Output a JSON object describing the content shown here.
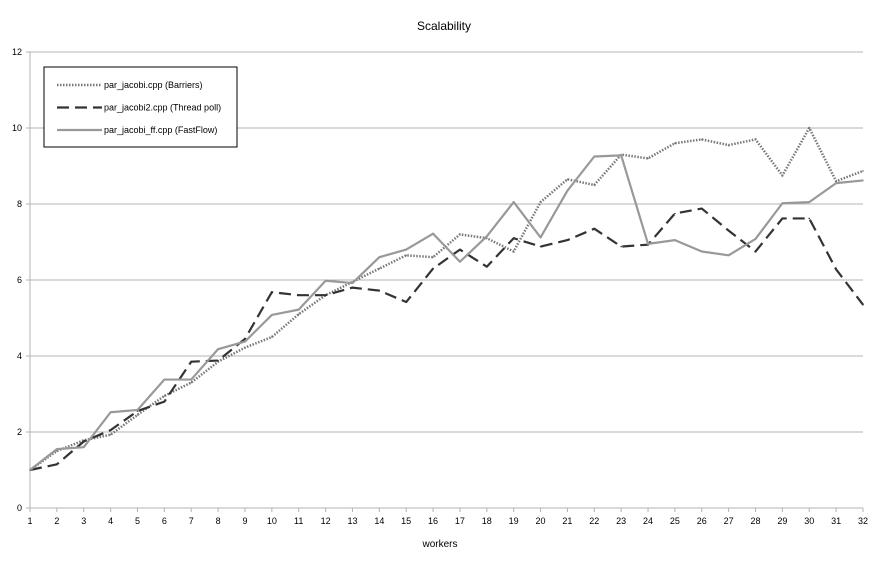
{
  "chart_data": {
    "type": "line",
    "title": "Scalability",
    "xlabel": "workers",
    "ylabel": "",
    "x": [
      1,
      2,
      3,
      4,
      5,
      6,
      7,
      8,
      9,
      10,
      11,
      12,
      13,
      14,
      15,
      16,
      17,
      18,
      19,
      20,
      21,
      22,
      23,
      24,
      25,
      26,
      27,
      28,
      29,
      30,
      31,
      32
    ],
    "xlim": [
      1,
      32
    ],
    "ylim": [
      0,
      12
    ],
    "yticks": [
      0,
      2,
      4,
      6,
      8,
      10,
      12
    ],
    "grid": "horizontal",
    "legend_position": "top-left",
    "series": [
      {
        "name": "par_jacobi.cpp (Barriers)",
        "style": "dotted",
        "color": "#777777",
        "values": [
          1.0,
          1.5,
          1.78,
          1.93,
          2.45,
          2.95,
          3.3,
          3.85,
          4.22,
          4.5,
          5.1,
          5.6,
          5.95,
          6.3,
          6.65,
          6.6,
          7.2,
          7.1,
          6.75,
          8.05,
          8.65,
          8.5,
          9.3,
          9.2,
          9.6,
          9.7,
          9.55,
          9.7,
          8.75,
          10.0,
          8.6,
          8.87
        ]
      },
      {
        "name": "par_jacobi2.cpp (Thread poll)",
        "style": "dashed",
        "color": "#333333",
        "values": [
          1.0,
          1.15,
          1.75,
          2.05,
          2.55,
          2.8,
          3.85,
          3.88,
          4.45,
          5.68,
          5.6,
          5.6,
          5.8,
          5.72,
          5.42,
          6.3,
          6.8,
          6.35,
          7.1,
          6.88,
          7.05,
          7.35,
          6.88,
          6.93,
          7.75,
          7.88,
          7.3,
          6.75,
          7.62,
          7.62,
          6.28,
          5.35
        ]
      },
      {
        "name": "par_jacobi_ff.cpp (FastFlow)",
        "style": "solid",
        "color": "#999999",
        "values": [
          1.0,
          1.55,
          1.6,
          2.52,
          2.58,
          3.38,
          3.38,
          4.18,
          4.38,
          5.08,
          5.22,
          5.98,
          5.92,
          6.6,
          6.8,
          7.22,
          6.48,
          7.15,
          8.05,
          7.12,
          8.35,
          9.25,
          9.28,
          6.95,
          7.05,
          6.75,
          6.65,
          7.08,
          8.02,
          8.05,
          8.55,
          8.62
        ]
      }
    ]
  }
}
